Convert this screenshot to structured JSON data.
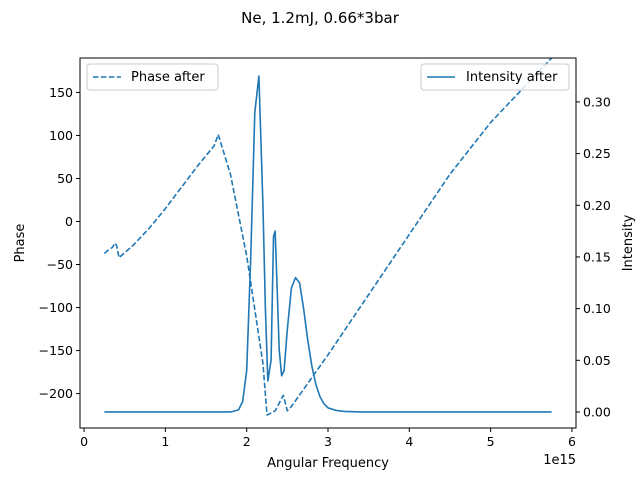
{
  "chart_data": {
    "type": "line",
    "title": "Ne, 1.2mJ, 0.66*3bar",
    "xlabel": "Angular Frequency",
    "ylabel_left": "Phase",
    "ylabel_right": "Intensity",
    "x_offset_text": "1e15",
    "x_scale": 1000000000000000.0,
    "xlim": [
      -0.05,
      6.05
    ],
    "ylim_left": [
      -240,
      190
    ],
    "ylim_right": [
      -0.0155,
      0.3425
    ],
    "x_ticks": [
      0,
      1,
      2,
      3,
      4,
      5,
      6
    ],
    "x_tick_labels": [
      "0",
      "1",
      "2",
      "3",
      "4",
      "5",
      "6"
    ],
    "y_left_ticks": [
      150,
      100,
      50,
      0,
      -50,
      -100,
      -150,
      -200
    ],
    "y_left_tick_labels": [
      "150",
      "100",
      "50",
      "0",
      "−50",
      "−100",
      "−150",
      "−200"
    ],
    "y_right_ticks": [
      0.0,
      0.05,
      0.1,
      0.15,
      0.2,
      0.25,
      0.3
    ],
    "y_right_tick_labels": [
      "0.00",
      "0.05",
      "0.10",
      "0.15",
      "0.20",
      "0.25",
      "0.30"
    ],
    "grid": false,
    "series": [
      {
        "name": "Phase after",
        "axis": "left",
        "style": "dashed",
        "color": "#1f77b4",
        "legend_position": "upper-left",
        "x": [
          0.25,
          0.3,
          0.35,
          0.38,
          0.4,
          0.42,
          0.43,
          0.6,
          0.8,
          1.0,
          1.2,
          1.4,
          1.6,
          1.65,
          1.8,
          2.0,
          2.2,
          2.25,
          2.35,
          2.45,
          2.5,
          2.55,
          3.0,
          3.5,
          4.0,
          4.5,
          5.0,
          5.5,
          5.75
        ],
        "y": [
          -37,
          -33,
          -30,
          -25,
          -28,
          -37,
          -42,
          -28,
          -8,
          15,
          40,
          65,
          88,
          101,
          55,
          -40,
          -165,
          -225,
          -220,
          -202,
          -220,
          -215,
          -155,
          -85,
          -15,
          55,
          115,
          165,
          190
        ]
      },
      {
        "name": "Intensity after",
        "axis": "right",
        "style": "solid",
        "color": "#1f77b4",
        "legend_position": "upper-right",
        "x": [
          0.25,
          0.5,
          1.0,
          1.5,
          1.8,
          1.9,
          1.95,
          2.0,
          2.05,
          2.1,
          2.15,
          2.2,
          2.23,
          2.26,
          2.3,
          2.33,
          2.35,
          2.37,
          2.4,
          2.43,
          2.46,
          2.5,
          2.55,
          2.6,
          2.65,
          2.7,
          2.75,
          2.8,
          2.85,
          2.9,
          2.95,
          3.0,
          3.1,
          3.2,
          3.4,
          3.6,
          4.0,
          5.0,
          5.75
        ],
        "y": [
          0.0,
          0.0,
          0.0,
          0.0,
          0.0,
          0.002,
          0.01,
          0.04,
          0.15,
          0.29,
          0.325,
          0.2,
          0.1,
          0.03,
          0.05,
          0.17,
          0.175,
          0.13,
          0.06,
          0.035,
          0.04,
          0.08,
          0.12,
          0.13,
          0.125,
          0.1,
          0.07,
          0.045,
          0.027,
          0.015,
          0.008,
          0.004,
          0.0015,
          0.0005,
          0.0,
          0.0,
          0.0,
          0.0,
          0.0
        ]
      }
    ]
  }
}
